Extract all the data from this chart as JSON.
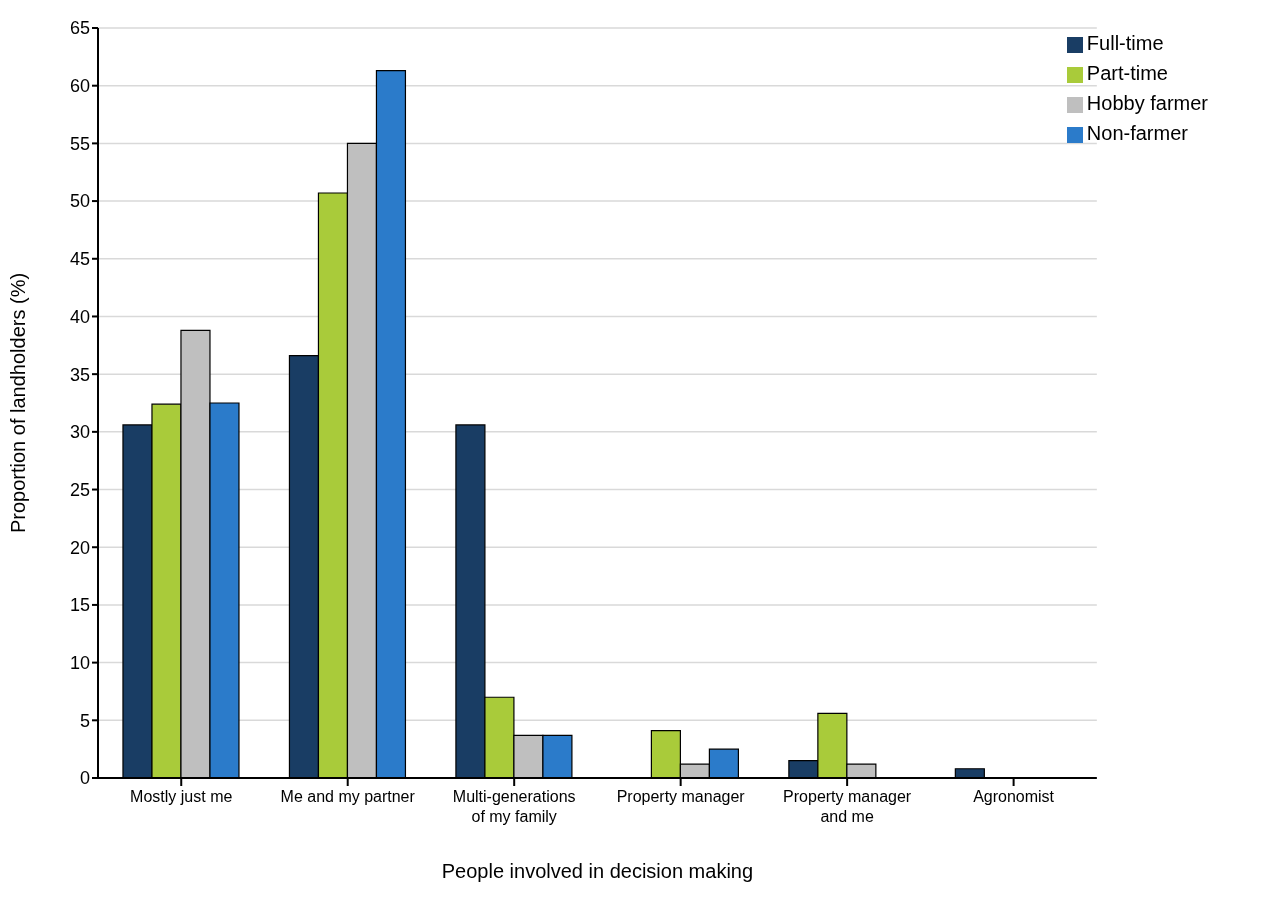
{
  "chart_data": {
    "type": "bar",
    "xlabel": "People involved in decision making",
    "ylabel": "Proportion of landholders (%)",
    "categories": [
      "Mostly just me",
      "Me and my partner",
      "Multi-generations of my family",
      "Property manager",
      "Property manager and me",
      "Agronomist"
    ],
    "series": [
      {
        "name": "Full-time",
        "color": "#193d64",
        "values": [
          30.6,
          36.6,
          30.6,
          0,
          1.5,
          0.8
        ]
      },
      {
        "name": "Part-time",
        "color": "#a9cb3a",
        "values": [
          32.4,
          50.7,
          7.0,
          4.1,
          5.6,
          0
        ]
      },
      {
        "name": "Hobby farmer",
        "color": "#bfbfbf",
        "values": [
          38.8,
          55,
          3.7,
          1.2,
          1.2,
          0
        ]
      },
      {
        "name": "Non-farmer",
        "color": "#2b7bca",
        "values": [
          32.5,
          61.3,
          3.7,
          2.5,
          0,
          0
        ]
      }
    ],
    "ylim": [
      0,
      65
    ],
    "yticks": [
      0,
      5,
      10,
      15,
      20,
      25,
      30,
      35,
      40,
      45,
      50,
      55,
      60,
      65
    ],
    "grid": "y",
    "legend": "top right"
  }
}
